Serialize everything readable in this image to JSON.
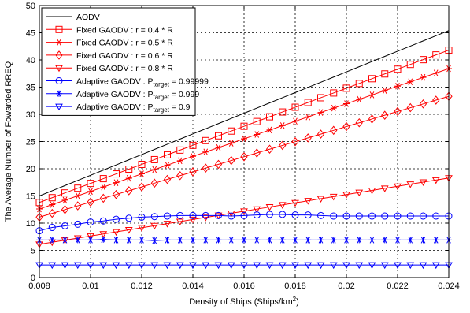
{
  "chart_data": {
    "type": "line",
    "xlabel": "Density of Ships (Ships/km",
    "xlabel_sup": "2",
    "xlabel_tail": ")",
    "ylabel": "The Average Number of Fowarded RREQ",
    "xlim": [
      0.008,
      0.024
    ],
    "ylim": [
      0,
      50
    ],
    "xticks": [
      0.008,
      0.01,
      0.012,
      0.014,
      0.016,
      0.018,
      0.02,
      0.022,
      0.024
    ],
    "xtick_labels": [
      "0.008",
      "0.01",
      "0.012",
      "0.014",
      "0.016",
      "0.018",
      "0.02",
      "0.022",
      "0.024"
    ],
    "yticks": [
      0,
      5,
      10,
      15,
      20,
      25,
      30,
      35,
      40,
      45,
      50
    ],
    "ytick_labels": [
      "0",
      "5",
      "10",
      "15",
      "20",
      "25",
      "30",
      "35",
      "40",
      "45",
      "50"
    ],
    "grid": true,
    "legend_position": "top-left",
    "series": [
      {
        "name": "AODV",
        "color": "#000000",
        "marker": "none",
        "y0": 15,
        "y1": 45.4
      },
      {
        "name": "Fixed GAODV : r = 0.4 * R",
        "color": "#ff0000",
        "marker": "square",
        "y0": 13.8,
        "y1": 41.8
      },
      {
        "name": "Fixed GAODV : r = 0.5 * R",
        "color": "#ff0000",
        "marker": "star",
        "y0": 12.6,
        "y1": 38.4
      },
      {
        "name": "Fixed GAODV : r = 0.6 * R",
        "color": "#ff0000",
        "marker": "diamond",
        "y0": 11.1,
        "y1": 33.3
      },
      {
        "name": "Fixed GAODV : r = 0.8 * R",
        "color": "#ff0000",
        "marker": "triangle-down",
        "y0": 6.1,
        "y1": 18.3
      },
      {
        "name": "Adaptive GAODV : P",
        "sub": "target",
        "suffix": " = 0.99999",
        "color": "#0000ff",
        "marker": "circle",
        "values": [
          8.6,
          9.2,
          9.5,
          9.8,
          10.2,
          10.4,
          10.7,
          10.9,
          11.1,
          11.2,
          11.3,
          11.4,
          11.4,
          11.4,
          11.4,
          11.3,
          11.4,
          11.5,
          11.6,
          11.6,
          11.5,
          11.5,
          11.4,
          11.3,
          11.3,
          11.3,
          11.3,
          11.3,
          11.3,
          11.3,
          11.3,
          11.3,
          11.3
        ]
      },
      {
        "name": "Adaptive GAODV : P",
        "sub": "target",
        "suffix": " = 0.999",
        "color": "#0000ff",
        "marker": "asterisk",
        "values": [
          6.9,
          6.9,
          6.9,
          6.9,
          6.9,
          7.0,
          6.9,
          6.9,
          6.9,
          6.8,
          6.9,
          6.9,
          6.9,
          6.9,
          6.9,
          6.9,
          6.9,
          6.9,
          6.9,
          6.9,
          6.9,
          6.9,
          6.9,
          6.9,
          6.9,
          6.9,
          6.9,
          6.9,
          6.9,
          6.9,
          6.9,
          6.9,
          6.9
        ]
      },
      {
        "name": "Adaptive GAODV : P",
        "sub": "target",
        "suffix": " = 0.9",
        "color": "#0000ff",
        "marker": "triangle-down",
        "values": [
          2.3,
          2.3,
          2.3,
          2.3,
          2.3,
          2.3,
          2.3,
          2.3,
          2.3,
          2.3,
          2.3,
          2.3,
          2.3,
          2.3,
          2.3,
          2.3,
          2.3,
          2.3,
          2.3,
          2.3,
          2.3,
          2.3,
          2.3,
          2.3,
          2.3,
          2.3,
          2.3,
          2.3,
          2.3,
          2.3,
          2.3,
          2.3,
          2.3
        ]
      }
    ],
    "x_points": 33
  }
}
